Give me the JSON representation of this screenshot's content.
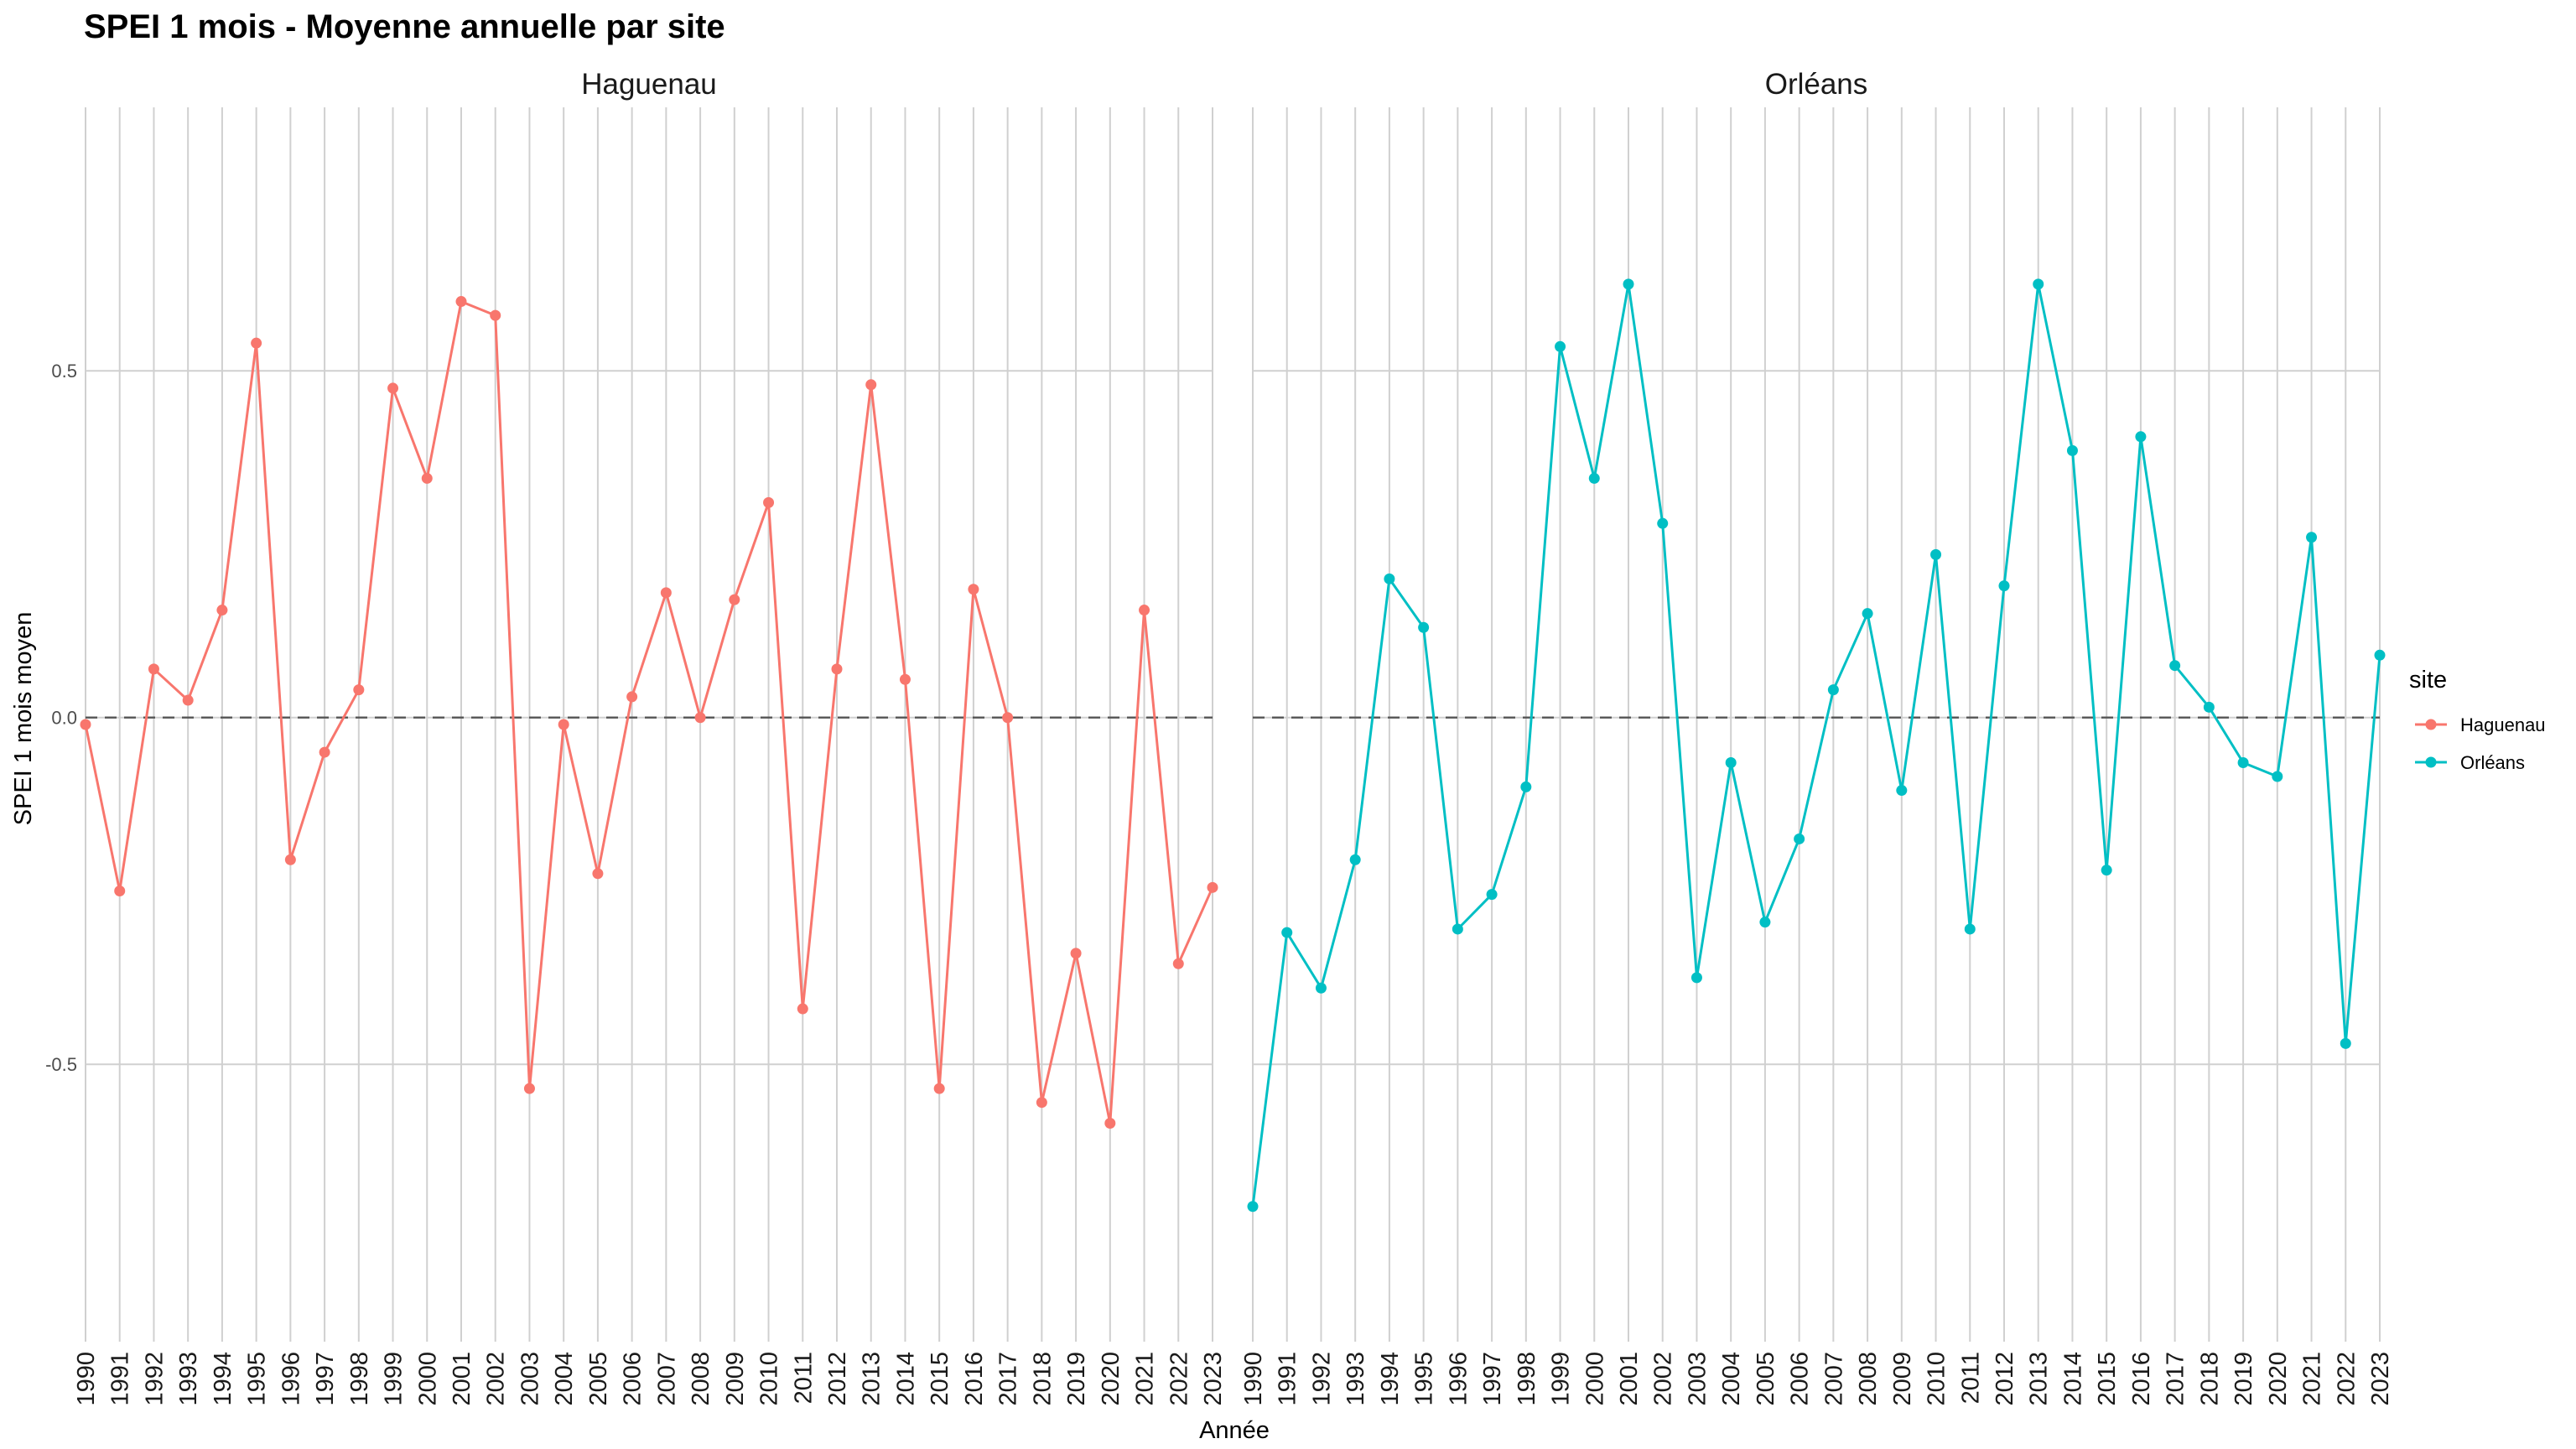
{
  "chart_data": {
    "type": "line",
    "title": "SPEI 1 mois - Moyenne annuelle par site",
    "xlabel": "Année",
    "ylabel": "SPEI 1 mois moyen",
    "ylim": [
      -0.9,
      0.88
    ],
    "yticks": [
      0.5,
      0.0,
      -0.5
    ],
    "ytick_labels": [
      "0.5",
      "0.0",
      "-0.5"
    ],
    "x": [
      1990,
      1991,
      1992,
      1993,
      1994,
      1995,
      1996,
      1997,
      1998,
      1999,
      2000,
      2001,
      2002,
      2003,
      2004,
      2005,
      2006,
      2007,
      2008,
      2009,
      2010,
      2011,
      2012,
      2013,
      2014,
      2015,
      2016,
      2017,
      2018,
      2019,
      2020,
      2021,
      2022,
      2023
    ],
    "hline": 0,
    "grid": true,
    "legend_title": "site",
    "legend_position": "right",
    "series": [
      {
        "name": "Haguenau",
        "color": "#F8766D",
        "values": [
          -0.01,
          -0.25,
          0.07,
          0.025,
          0.155,
          0.54,
          -0.205,
          -0.05,
          0.04,
          0.475,
          0.345,
          0.6,
          0.58,
          -0.535,
          -0.01,
          -0.225,
          0.03,
          0.18,
          0.0,
          0.17,
          0.31,
          -0.42,
          0.07,
          0.48,
          0.055,
          -0.535,
          0.185,
          0.0,
          -0.555,
          -0.34,
          -0.585,
          0.155,
          -0.355,
          -0.245
        ]
      },
      {
        "name": "Orléans",
        "color": "#00BFC4",
        "values": [
          -0.705,
          -0.31,
          -0.39,
          -0.205,
          0.2,
          0.13,
          -0.305,
          -0.255,
          -0.1,
          0.535,
          0.345,
          0.625,
          0.28,
          -0.375,
          -0.065,
          -0.295,
          -0.175,
          0.04,
          0.15,
          -0.105,
          0.235,
          -0.305,
          0.19,
          0.625,
          0.385,
          -0.22,
          0.405,
          0.075,
          0.015,
          -0.065,
          -0.085,
          0.26,
          -0.47,
          0.09
        ]
      }
    ]
  }
}
